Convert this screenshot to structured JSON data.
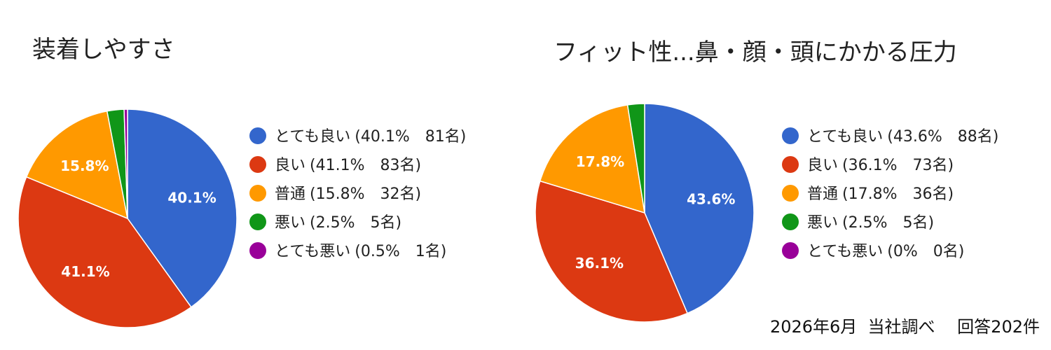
{
  "chart_data": [
    {
      "type": "pie",
      "title": "装着しやすさ",
      "slices": [
        {
          "label": "とても良い",
          "legend": "(40.1%　81名)",
          "value": 40.1,
          "count": 81,
          "color": "#3366cc",
          "slice_label": "40.1%"
        },
        {
          "label": "良い",
          "legend": "(41.1%　83名)",
          "value": 41.1,
          "count": 83,
          "color": "#dc3912",
          "slice_label": "41.1%"
        },
        {
          "label": "普通",
          "legend": "(15.8%　32名)",
          "value": 15.8,
          "count": 32,
          "color": "#ff9900",
          "slice_label": "15.8%"
        },
        {
          "label": "悪い",
          "legend": "(2.5%　5名)",
          "value": 2.5,
          "count": 5,
          "color": "#109618",
          "slice_label": ""
        },
        {
          "label": "とても悪い",
          "legend": "(0.5%　1名)",
          "value": 0.5,
          "count": 1,
          "color": "#990099",
          "slice_label": ""
        }
      ]
    },
    {
      "type": "pie",
      "title": "フィット性...鼻・顔・頭にかかる圧力",
      "slices": [
        {
          "label": "とても良い",
          "legend": "(43.6%　88名)",
          "value": 43.6,
          "count": 88,
          "color": "#3366cc",
          "slice_label": "43.6%"
        },
        {
          "label": "良い",
          "legend": "(36.1%　73名)",
          "value": 36.1,
          "count": 73,
          "color": "#dc3912",
          "slice_label": "36.1%"
        },
        {
          "label": "普通",
          "legend": "(17.8%　36名)",
          "value": 17.8,
          "count": 36,
          "color": "#ff9900",
          "slice_label": "17.8%"
        },
        {
          "label": "悪い",
          "legend": "(2.5%　5名)",
          "value": 2.5,
          "count": 5,
          "color": "#109618",
          "slice_label": ""
        },
        {
          "label": "とても悪い",
          "legend": "(0%　0名)",
          "value": 0,
          "count": 0,
          "color": "#990099",
          "slice_label": ""
        }
      ]
    }
  ],
  "footer": "2026年6月  当社調べ　 回答202件"
}
